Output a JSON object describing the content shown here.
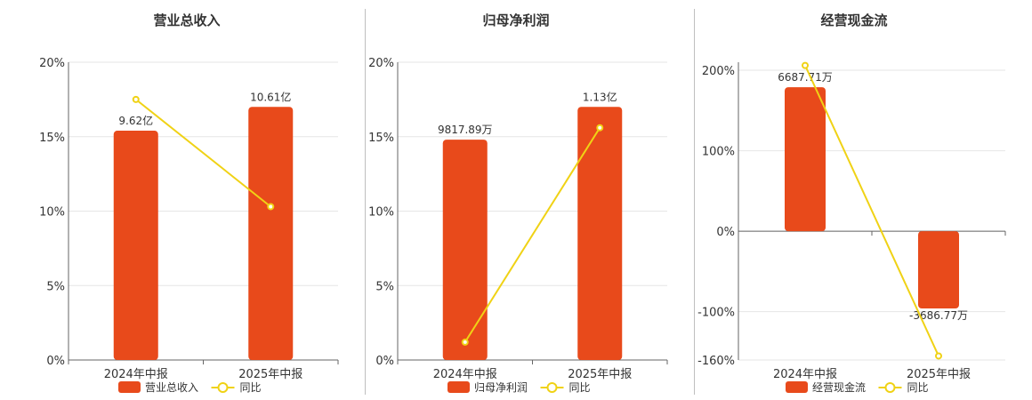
{
  "colors": {
    "bar": "#E84A1B",
    "line": "#F0D215",
    "grid": "#e6e6e6",
    "axis": "#666666"
  },
  "chart_data": [
    {
      "type": "bar",
      "title": "营业总收入",
      "categories": [
        "2024年中报",
        "2025年中报"
      ],
      "series": [
        {
          "name": "营业总收入",
          "type": "bar",
          "labels": [
            "9.62亿",
            "10.61亿"
          ]
        },
        {
          "name": "同比",
          "type": "line",
          "values": [
            17.5,
            10.3
          ]
        }
      ],
      "bar_heights_axis_units": [
        15.4,
        17.0
      ],
      "ylim": [
        0,
        20
      ],
      "yticks": [
        0,
        5,
        10,
        15,
        20
      ],
      "ytick_labels": [
        "0%",
        "5%",
        "10%",
        "15%",
        "20%"
      ],
      "grid": true,
      "legend": "bottom"
    },
    {
      "type": "bar",
      "title": "归母净利润",
      "categories": [
        "2024年中报",
        "2025年中报"
      ],
      "series": [
        {
          "name": "归母净利润",
          "type": "bar",
          "labels": [
            "9817.89万",
            "1.13亿"
          ]
        },
        {
          "name": "同比",
          "type": "line",
          "values": [
            1.2,
            15.6
          ]
        }
      ],
      "bar_heights_axis_units": [
        14.8,
        17.0
      ],
      "ylim": [
        0,
        20
      ],
      "yticks": [
        0,
        5,
        10,
        15,
        20
      ],
      "ytick_labels": [
        "0%",
        "5%",
        "10%",
        "15%",
        "20%"
      ],
      "grid": true,
      "legend": "bottom"
    },
    {
      "type": "bar",
      "title": "经营现金流",
      "categories": [
        "2024年中报",
        "2025年中报"
      ],
      "series": [
        {
          "name": "经营现金流",
          "type": "bar",
          "labels": [
            "6687.71万",
            "-3686.77万"
          ]
        },
        {
          "name": "同比",
          "type": "line",
          "values": [
            206,
            -155
          ]
        }
      ],
      "bar_heights_axis_units": [
        179,
        -96
      ],
      "ylim": [
        -160,
        210
      ],
      "yticks": [
        -160,
        -100,
        0,
        100,
        200
      ],
      "ytick_labels": [
        "-160%",
        "-100%",
        "0%",
        "100%",
        "200%"
      ],
      "grid": true,
      "legend": "bottom"
    }
  ]
}
